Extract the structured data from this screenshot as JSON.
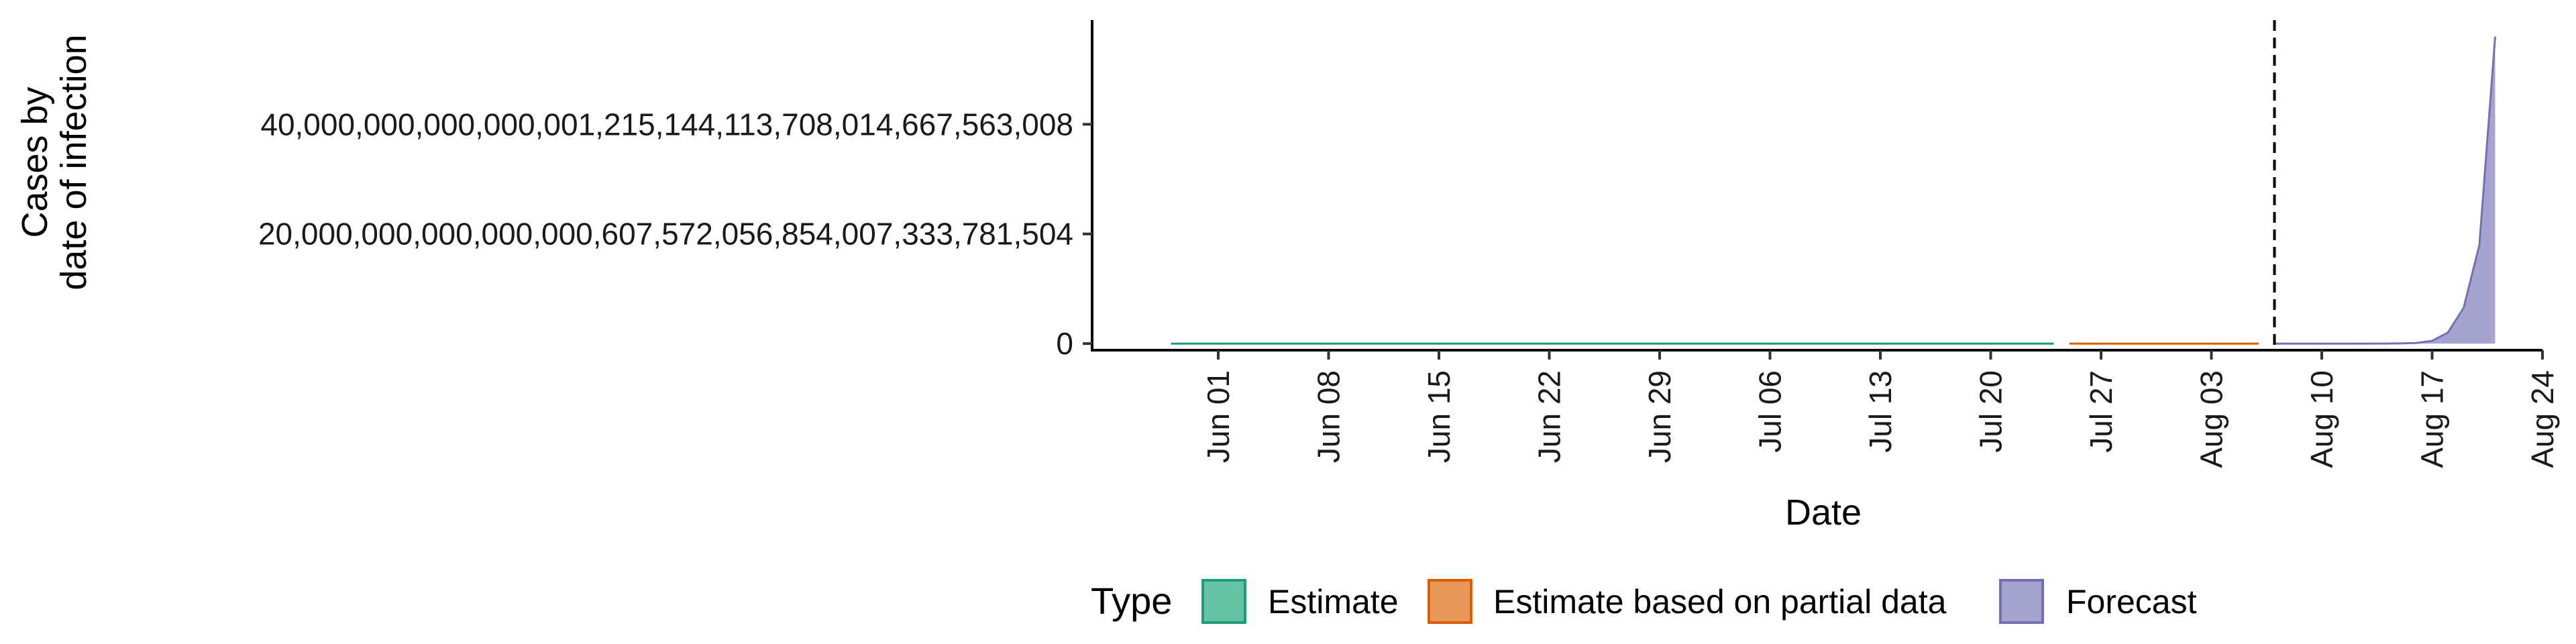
{
  "chart_data": {
    "type": "area",
    "xlabel": "Date",
    "ylabel_lines": [
      "Cases by",
      "date of infection"
    ],
    "y_ticks": [
      {
        "value": 0,
        "label": "0"
      },
      {
        "value": 2e+19,
        "label": "20,000,000,000,000,000,607,572,056,854,007,333,781,504"
      },
      {
        "value": 4e+19,
        "label": "40,000,000,000,000,001,215,144,113,708,014,667,563,008"
      }
    ],
    "ylim": [
      -1.2e+18,
      5.9e+19
    ],
    "xlim": [
      "2020-05-24",
      "2020-08-24"
    ],
    "x_ticks": [
      {
        "date": "2020-06-01",
        "label": "Jun 01"
      },
      {
        "date": "2020-06-08",
        "label": "Jun 08"
      },
      {
        "date": "2020-06-15",
        "label": "Jun 15"
      },
      {
        "date": "2020-06-22",
        "label": "Jun 22"
      },
      {
        "date": "2020-06-29",
        "label": "Jun 29"
      },
      {
        "date": "2020-07-06",
        "label": "Jul 06"
      },
      {
        "date": "2020-07-13",
        "label": "Jul 13"
      },
      {
        "date": "2020-07-20",
        "label": "Jul 20"
      },
      {
        "date": "2020-07-27",
        "label": "Jul 27"
      },
      {
        "date": "2020-08-03",
        "label": "Aug 03"
      },
      {
        "date": "2020-08-10",
        "label": "Aug 10"
      },
      {
        "date": "2020-08-17",
        "label": "Aug 17"
      },
      {
        "date": "2020-08-24",
        "label": "Aug 24"
      }
    ],
    "vline_date": "2020-08-07",
    "grid": false,
    "series": [
      {
        "name": "Estimate",
        "fill": "#66c2a5",
        "stroke": "#1b9e77",
        "points": [
          {
            "date": "2020-05-29",
            "value": 0
          },
          {
            "date": "2020-07-24",
            "value": 0
          }
        ]
      },
      {
        "name": "Estimate based on partial data",
        "fill": "#e89858",
        "stroke": "#d95f02",
        "points": [
          {
            "date": "2020-07-25",
            "value": 0
          },
          {
            "date": "2020-08-06",
            "value": 0
          }
        ]
      },
      {
        "name": "Forecast",
        "fill": "#a6a3d1",
        "stroke": "#7570b3",
        "points": [
          {
            "date": "2020-08-07",
            "value": 0
          },
          {
            "date": "2020-08-12",
            "value": 0
          },
          {
            "date": "2020-08-14",
            "value": 1e+16
          },
          {
            "date": "2020-08-15",
            "value": 4e+16
          },
          {
            "date": "2020-08-16",
            "value": 1.2e+17
          },
          {
            "date": "2020-08-17",
            "value": 5e+17
          },
          {
            "date": "2020-08-18",
            "value": 2e+18
          },
          {
            "date": "2020-08-19",
            "value": 6.5e+18
          },
          {
            "date": "2020-08-20",
            "value": 1.8e+19
          },
          {
            "date": "2020-08-21",
            "value": 5.6e+19
          }
        ]
      }
    ],
    "legend": {
      "title": "Type",
      "position": "bottom",
      "items": [
        "Estimate",
        "Estimate based on partial data",
        "Forecast"
      ]
    }
  }
}
